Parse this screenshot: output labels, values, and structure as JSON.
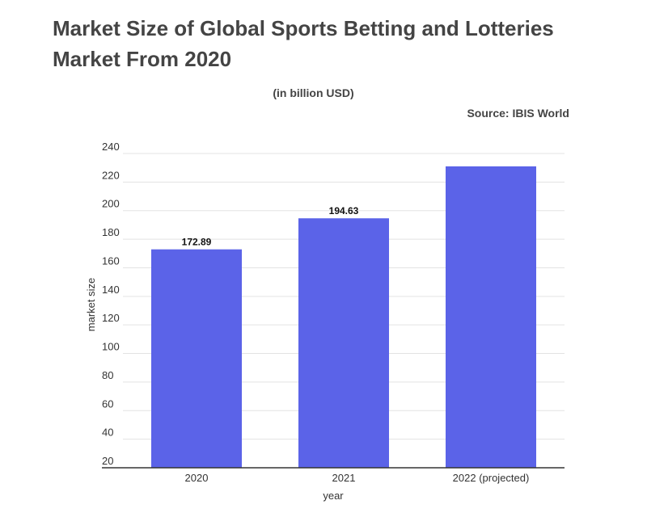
{
  "header": {
    "title": "Market Size of Global Sports Betting and Lotteries Market From 2020",
    "subtitle": "(in billion USD)",
    "source": "Source: IBIS World"
  },
  "chart_data": {
    "type": "bar",
    "title": "Market Size of Global Sports Betting and Lotteries Market From 2020",
    "subtitle": "(in billion USD)",
    "xlabel": "year",
    "ylabel": "market size",
    "categories": [
      "2020",
      "2021",
      "2022 (projected)"
    ],
    "values": [
      172.89,
      194.63,
      231
    ],
    "data_labels": [
      "172.89",
      "194.63",
      ""
    ],
    "yticks": [
      20,
      40,
      60,
      80,
      100,
      120,
      140,
      160,
      180,
      200,
      220,
      240
    ],
    "ylim": [
      20,
      240
    ],
    "grid": true,
    "bar_color": "#5b63e8",
    "grid_color": "#e3e3e3",
    "axis_color": "#333333"
  }
}
